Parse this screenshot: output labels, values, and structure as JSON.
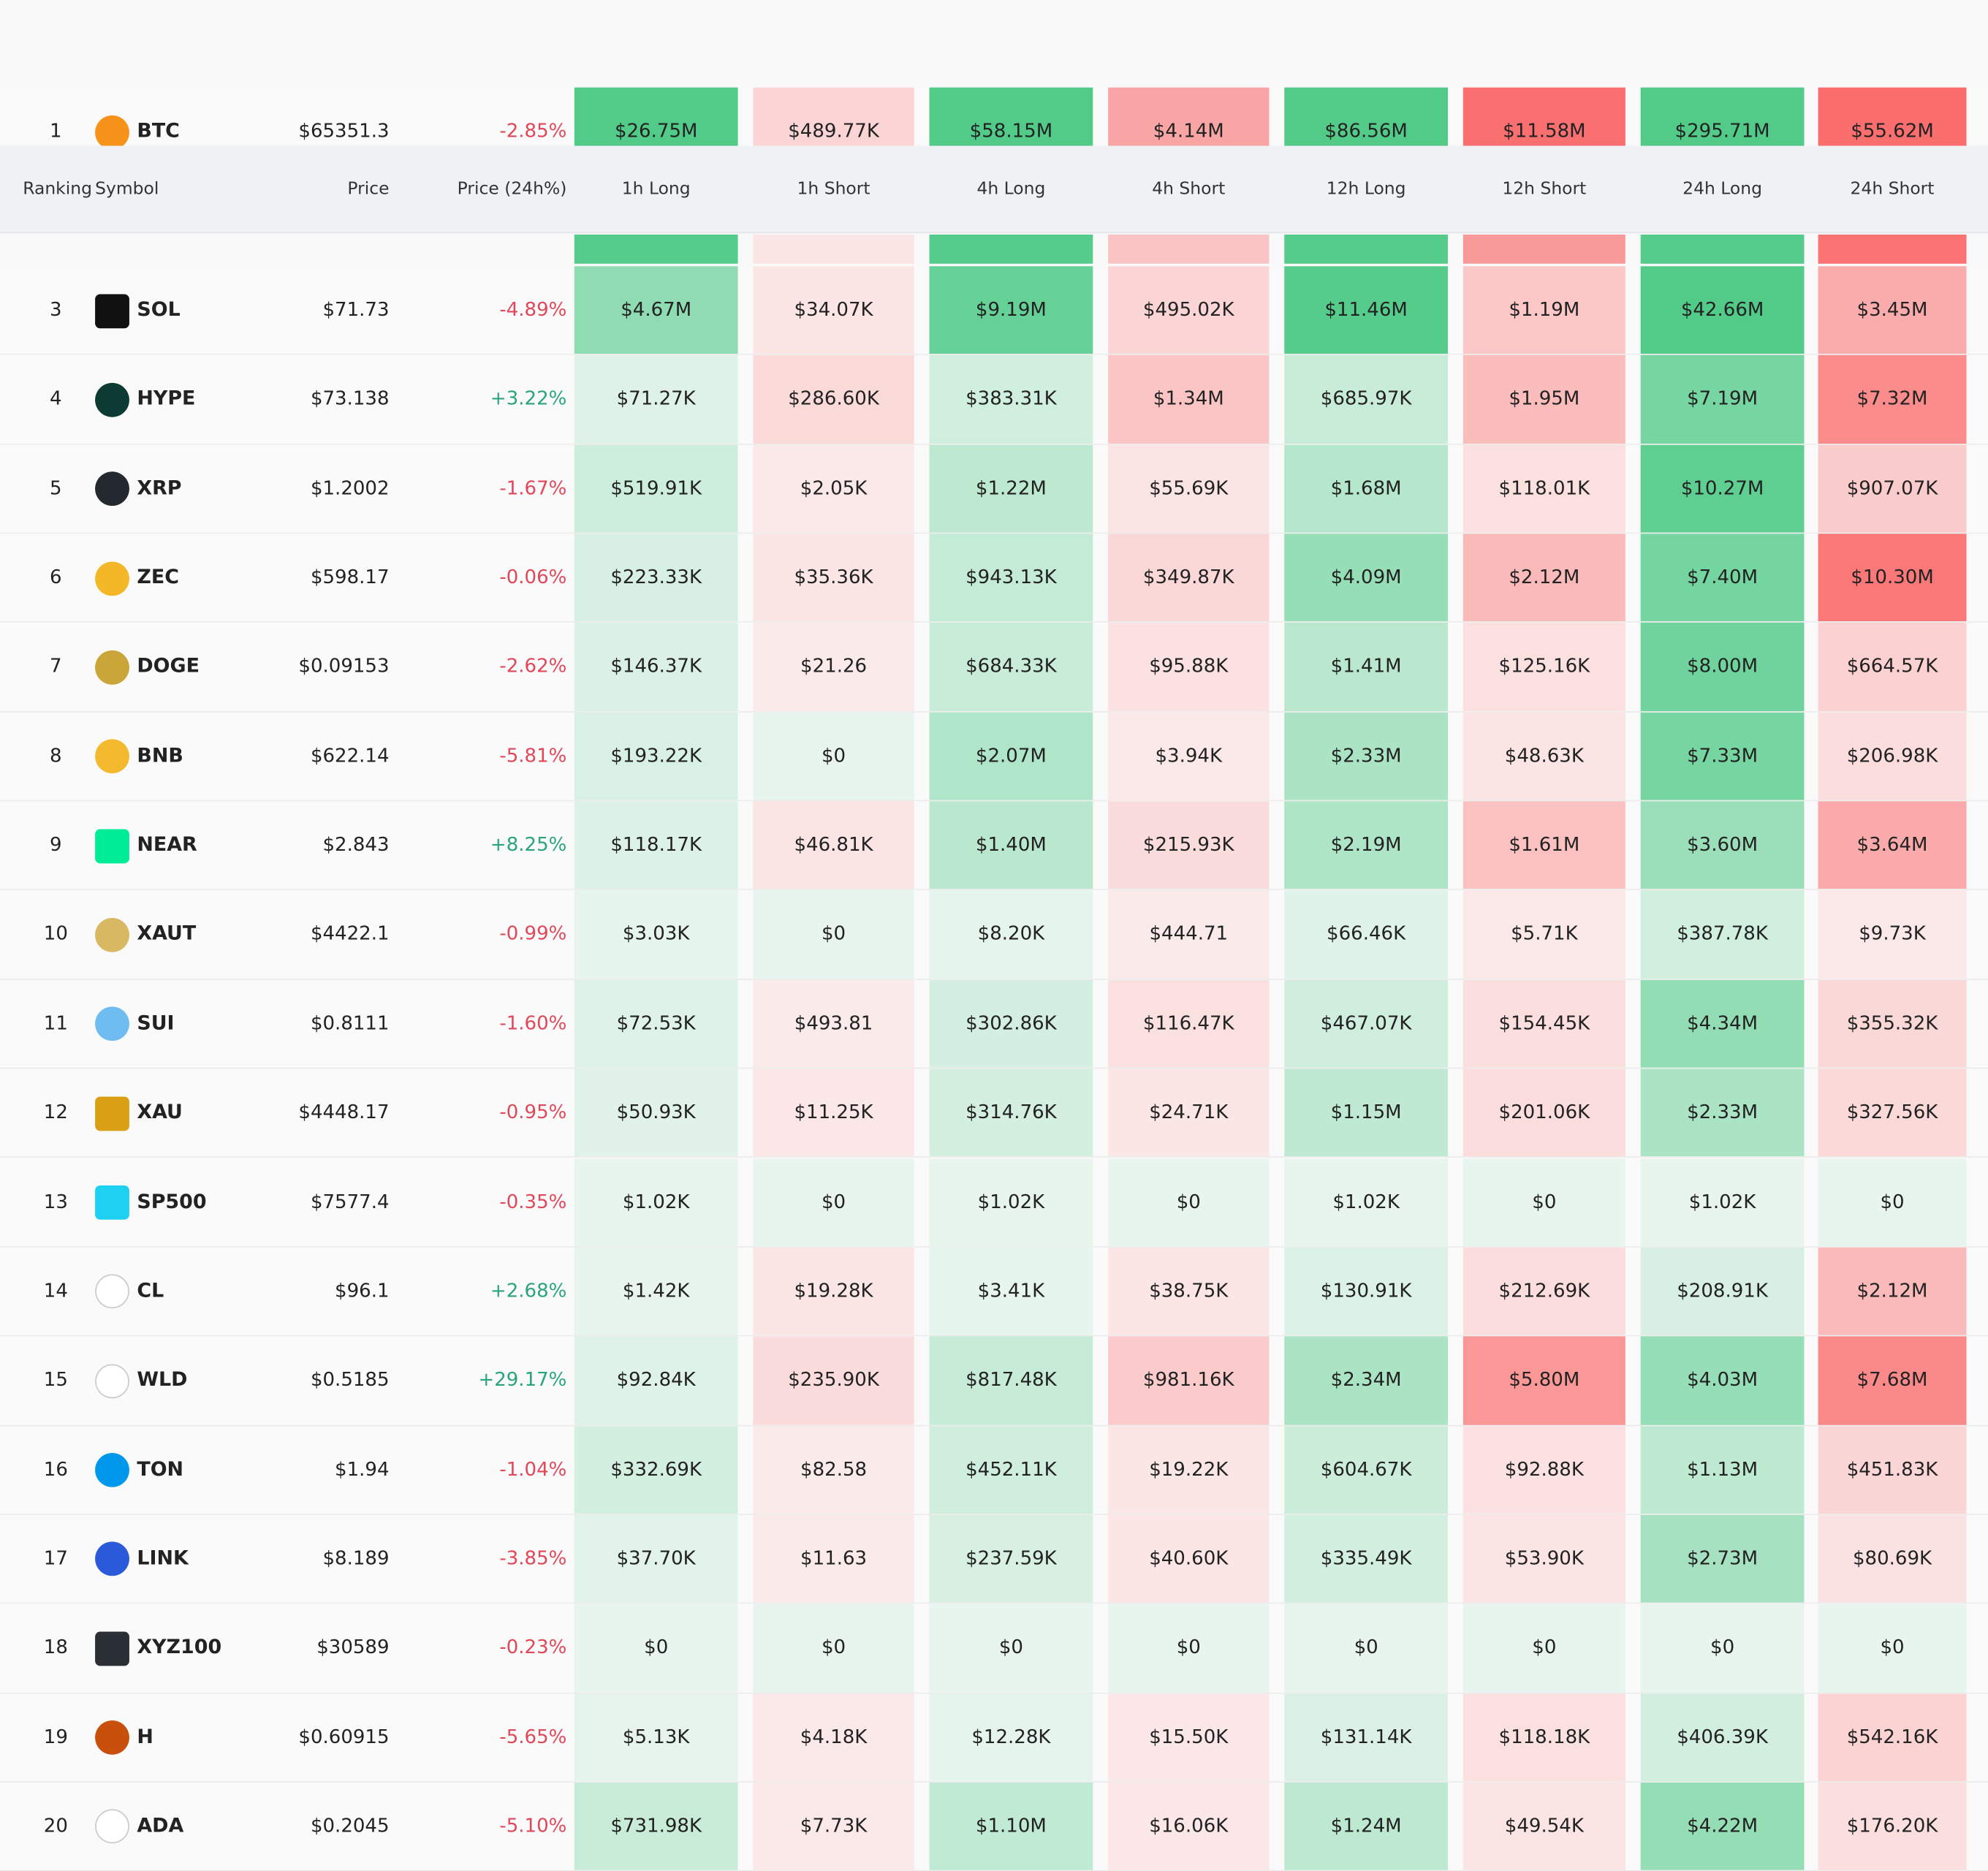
{
  "table": {
    "header": [
      "Ranking",
      "Symbol",
      "Price",
      "Price (24h%)",
      "1h Long",
      "1h Short",
      "4h Long",
      "4h Short",
      "12h Long",
      "12h Short",
      "24h Long",
      "24h Short"
    ],
    "rows": [
      [
        "1",
        "BTC",
        "$65351.3",
        "-2.85%",
        "$26.75M",
        "$489.77K",
        "$58.15M",
        "$4.14M",
        "$86.56M",
        "$11.58M",
        "$295.71M",
        "$55.62M"
      ],
      [
        "3",
        "SOL",
        "$71.73",
        "-4.89%",
        "$4.67M",
        "$34.07K",
        "$9.19M",
        "$495.02K",
        "$11.46M",
        "$1.19M",
        "$42.66M",
        "$3.45M"
      ],
      [
        "4",
        "HYPE",
        "$73.138",
        "+3.22%",
        "$71.27K",
        "$286.60K",
        "$383.31K",
        "$1.34M",
        "$685.97K",
        "$1.95M",
        "$7.19M",
        "$7.32M"
      ],
      [
        "5",
        "XRP",
        "$1.2002",
        "-1.67%",
        "$519.91K",
        "$2.05K",
        "$1.22M",
        "$55.69K",
        "$1.68M",
        "$118.01K",
        "$10.27M",
        "$907.07K"
      ],
      [
        "6",
        "ZEC",
        "$598.17",
        "-0.06%",
        "$223.33K",
        "$35.36K",
        "$943.13K",
        "$349.87K",
        "$4.09M",
        "$2.12M",
        "$7.40M",
        "$10.30M"
      ],
      [
        "7",
        "DOGE",
        "$0.09153",
        "-2.62%",
        "$146.37K",
        "$21.26",
        "$684.33K",
        "$95.88K",
        "$1.41M",
        "$125.16K",
        "$8.00M",
        "$664.57K"
      ],
      [
        "8",
        "BNB",
        "$622.14",
        "-5.81%",
        "$193.22K",
        "$0",
        "$2.07M",
        "$3.94K",
        "$2.33M",
        "$48.63K",
        "$7.33M",
        "$206.98K"
      ],
      [
        "9",
        "NEAR",
        "$2.843",
        "+8.25%",
        "$118.17K",
        "$46.81K",
        "$1.40M",
        "$215.93K",
        "$2.19M",
        "$1.61M",
        "$3.60M",
        "$3.64M"
      ],
      [
        "10",
        "XAUT",
        "$4422.1",
        "-0.99%",
        "$3.03K",
        "$0",
        "$8.20K",
        "$444.71",
        "$66.46K",
        "$5.71K",
        "$387.78K",
        "$9.73K"
      ],
      [
        "11",
        "SUI",
        "$0.8111",
        "-1.60%",
        "$72.53K",
        "$493.81",
        "$302.86K",
        "$116.47K",
        "$467.07K",
        "$154.45K",
        "$4.34M",
        "$355.32K"
      ],
      [
        "12",
        "XAU",
        "$4448.17",
        "-0.95%",
        "$50.93K",
        "$11.25K",
        "$314.76K",
        "$24.71K",
        "$1.15M",
        "$201.06K",
        "$2.33M",
        "$327.56K"
      ],
      [
        "13",
        "SP500",
        "$7577.4",
        "-0.35%",
        "$1.02K",
        "$0",
        "$1.02K",
        "$0",
        "$1.02K",
        "$0",
        "$1.02K",
        "$0"
      ],
      [
        "14",
        "CL",
        "$96.1",
        "+2.68%",
        "$1.42K",
        "$19.28K",
        "$3.41K",
        "$38.75K",
        "$130.91K",
        "$212.69K",
        "$208.91K",
        "$2.12M"
      ],
      [
        "15",
        "WLD",
        "$0.5185",
        "+29.17%",
        "$92.84K",
        "$235.90K",
        "$817.48K",
        "$981.16K",
        "$2.34M",
        "$5.80M",
        "$4.03M",
        "$7.68M"
      ],
      [
        "16",
        "TON",
        "$1.94",
        "-1.04%",
        "$332.69K",
        "$82.58",
        "$452.11K",
        "$19.22K",
        "$604.67K",
        "$92.88K",
        "$1.13M",
        "$451.83K"
      ],
      [
        "17",
        "LINK",
        "$8.189",
        "-3.85%",
        "$37.70K",
        "$11.63",
        "$237.59K",
        "$40.60K",
        "$335.49K",
        "$53.90K",
        "$2.73M",
        "$80.69K"
      ],
      [
        "18",
        "XYZ100",
        "$30589",
        "-0.23%",
        "$0",
        "$0",
        "$0",
        "$0",
        "$0",
        "$0",
        "$0",
        "$0"
      ],
      [
        "19",
        "H",
        "$0.60915",
        "-5.65%",
        "$5.13K",
        "$4.18K",
        "$12.28K",
        "$15.50K",
        "$131.14K",
        "$118.18K",
        "$406.39K",
        "$542.16K"
      ],
      [
        "20",
        "ADA",
        "$0.2045",
        "-5.10%",
        "$731.98K",
        "$7.73K",
        "$1.10M",
        "$16.06K",
        "$1.24M",
        "$49.54K",
        "$4.22M",
        "$176.20K"
      ]
    ]
  }
}
